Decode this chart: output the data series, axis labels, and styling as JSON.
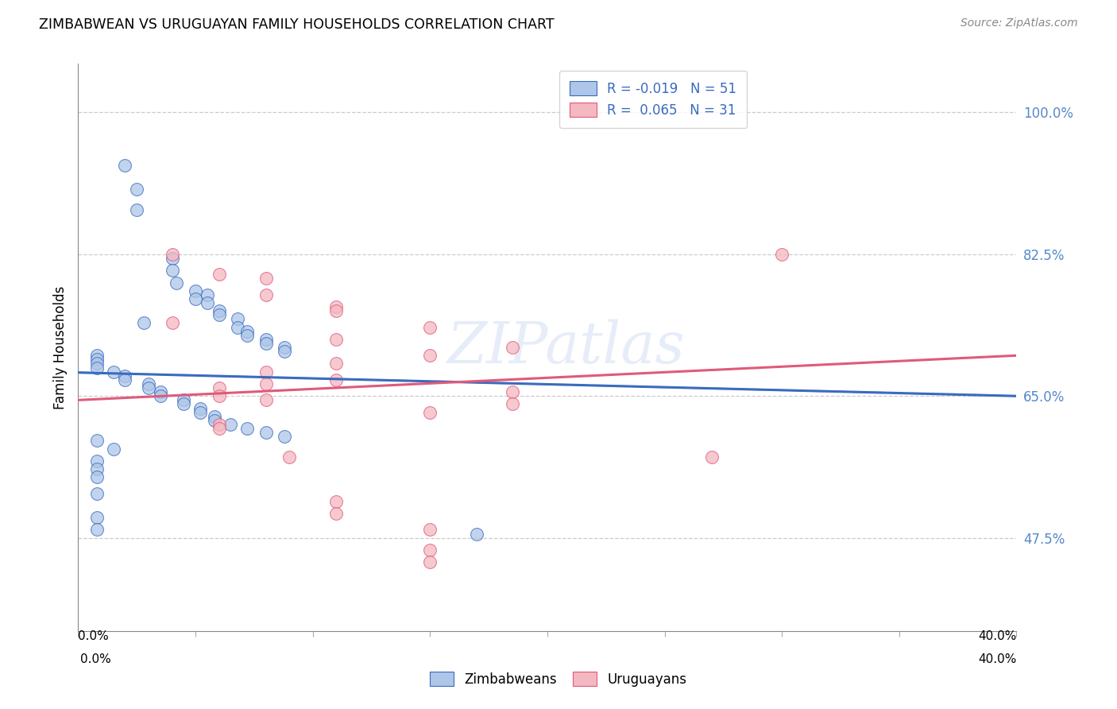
{
  "title": "ZIMBABWEAN VS URUGUAYAN FAMILY HOUSEHOLDS CORRELATION CHART",
  "source": "Source: ZipAtlas.com",
  "ylabel": "Family Households",
  "y_ticks": [
    0.475,
    0.65,
    0.825,
    1.0
  ],
  "y_tick_labels": [
    "47.5%",
    "65.0%",
    "82.5%",
    "100.0%"
  ],
  "xmin": 0.0,
  "xmax": 0.4,
  "ymin": 0.36,
  "ymax": 1.06,
  "watermark": "ZIPatlas",
  "zim_color": "#aec6e8",
  "uru_color": "#f4b8c1",
  "zim_line_color": "#3a6bbf",
  "uru_line_color": "#e05a7a",
  "zim_R": -0.019,
  "zim_N": 51,
  "uru_R": 0.065,
  "uru_N": 31,
  "zim_line": [
    0.679,
    0.65
  ],
  "uru_line": [
    0.645,
    0.7
  ],
  "zim_points_x": [
    0.02,
    0.025,
    0.025,
    0.04,
    0.04,
    0.042,
    0.05,
    0.05,
    0.055,
    0.055,
    0.06,
    0.06,
    0.028,
    0.068,
    0.068,
    0.072,
    0.072,
    0.08,
    0.08,
    0.088,
    0.088,
    0.008,
    0.008,
    0.008,
    0.008,
    0.015,
    0.02,
    0.02,
    0.03,
    0.03,
    0.035,
    0.035,
    0.045,
    0.045,
    0.052,
    0.052,
    0.058,
    0.058,
    0.065,
    0.072,
    0.08,
    0.088,
    0.008,
    0.015,
    0.008,
    0.008,
    0.008,
    0.008,
    0.008,
    0.008,
    0.17
  ],
  "zim_points_y": [
    0.935,
    0.905,
    0.88,
    0.82,
    0.805,
    0.79,
    0.78,
    0.77,
    0.775,
    0.765,
    0.755,
    0.75,
    0.74,
    0.745,
    0.735,
    0.73,
    0.725,
    0.72,
    0.715,
    0.71,
    0.705,
    0.7,
    0.695,
    0.69,
    0.685,
    0.68,
    0.675,
    0.67,
    0.665,
    0.66,
    0.655,
    0.65,
    0.645,
    0.64,
    0.635,
    0.63,
    0.625,
    0.62,
    0.615,
    0.61,
    0.605,
    0.6,
    0.595,
    0.585,
    0.57,
    0.56,
    0.55,
    0.53,
    0.5,
    0.485,
    0.48
  ],
  "uru_points_x": [
    0.04,
    0.06,
    0.08,
    0.08,
    0.11,
    0.11,
    0.04,
    0.15,
    0.11,
    0.185,
    0.15,
    0.11,
    0.08,
    0.11,
    0.08,
    0.06,
    0.185,
    0.06,
    0.08,
    0.185,
    0.15,
    0.06,
    0.06,
    0.09,
    0.11,
    0.11,
    0.15,
    0.15,
    0.3,
    0.27,
    0.15
  ],
  "uru_points_y": [
    0.825,
    0.8,
    0.795,
    0.775,
    0.76,
    0.755,
    0.74,
    0.735,
    0.72,
    0.71,
    0.7,
    0.69,
    0.68,
    0.67,
    0.665,
    0.66,
    0.655,
    0.65,
    0.645,
    0.64,
    0.63,
    0.615,
    0.61,
    0.575,
    0.52,
    0.505,
    0.46,
    0.445,
    0.825,
    0.575,
    0.485
  ]
}
